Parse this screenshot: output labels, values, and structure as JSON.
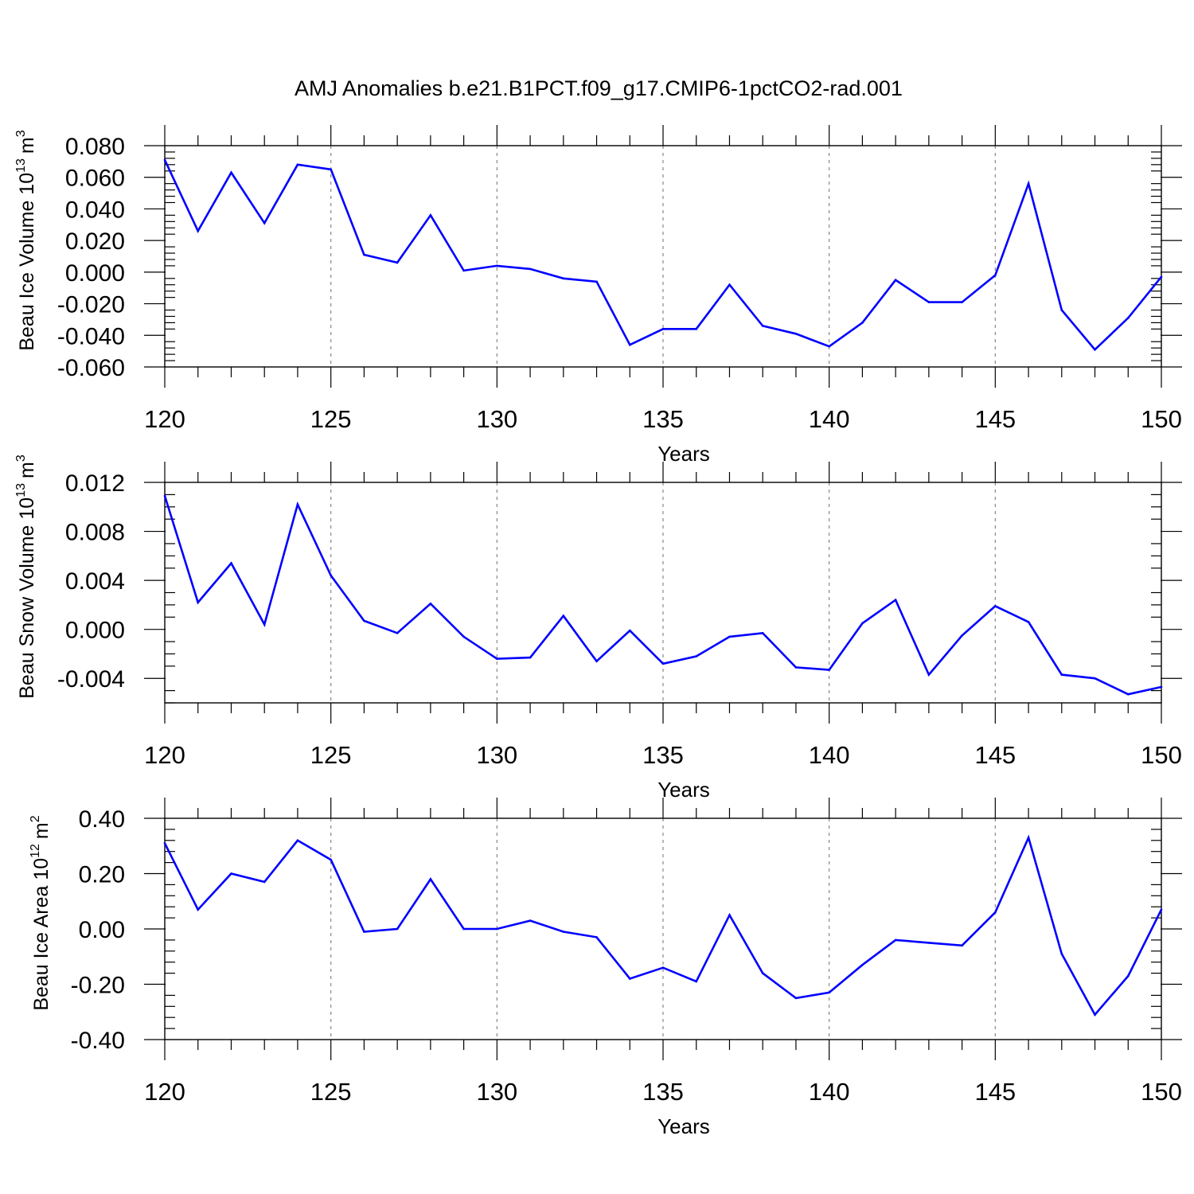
{
  "title": "AMJ Anomalies b.e21.B1PCT.f09_g17.CMIP6-1pctCO2-rad.001",
  "colors": {
    "line": "#0000ff",
    "axis": "#000000",
    "grid": "#888888"
  },
  "chart_data": [
    {
      "type": "line",
      "ylabel": "Beau Ice Volume 10",
      "ylabel_exp": "13",
      "ylabel_unit": "m",
      "ylabel_unit_exp": "3",
      "xlabel": "Years",
      "xlim": [
        120,
        150
      ],
      "ylim": [
        -0.06,
        0.08
      ],
      "xticks": [
        120,
        125,
        130,
        135,
        140,
        145,
        150
      ],
      "xtick_labels": [
        "120",
        "125",
        "130",
        "135",
        "140",
        "145",
        "150"
      ],
      "yticks": [
        -0.06,
        -0.04,
        -0.02,
        0.0,
        0.02,
        0.04,
        0.06,
        0.08
      ],
      "ytick_labels": [
        "-0.060",
        "-0.040",
        "-0.020",
        "0.000",
        "0.020",
        "0.040",
        "0.060",
        "0.080"
      ],
      "grid": "vertical dashed at major x ticks",
      "x": [
        120,
        121,
        122,
        123,
        124,
        125,
        126,
        127,
        128,
        129,
        130,
        131,
        132,
        133,
        134,
        135,
        136,
        137,
        138,
        139,
        140,
        141,
        142,
        143,
        144,
        145,
        146,
        147,
        148,
        149,
        150
      ],
      "series": [
        {
          "values": [
            0.071,
            0.026,
            0.063,
            0.031,
            0.068,
            0.065,
            0.011,
            0.006,
            0.036,
            0.001,
            0.004,
            0.002,
            -0.004,
            -0.006,
            -0.046,
            -0.036,
            -0.036,
            -0.008,
            -0.034,
            -0.039,
            -0.047,
            -0.032,
            -0.005,
            -0.019,
            -0.019,
            -0.002,
            0.056,
            -0.024,
            -0.049,
            -0.029,
            -0.003
          ]
        }
      ]
    },
    {
      "type": "line",
      "ylabel": "Beau Snow Volume 10",
      "ylabel_exp": "13",
      "ylabel_unit": "m",
      "ylabel_unit_exp": "3",
      "xlabel": "Years",
      "xlim": [
        120,
        150
      ],
      "ylim": [
        -0.006,
        0.012
      ],
      "xticks": [
        120,
        125,
        130,
        135,
        140,
        145,
        150
      ],
      "xtick_labels": [
        "120",
        "125",
        "130",
        "135",
        "140",
        "145",
        "150"
      ],
      "yticks": [
        -0.004,
        0.0,
        0.004,
        0.008,
        0.012
      ],
      "ytick_labels": [
        "-0.004",
        "0.000",
        "0.004",
        "0.008",
        "0.012"
      ],
      "grid": "vertical dashed at major x ticks",
      "x": [
        120,
        121,
        122,
        123,
        124,
        125,
        126,
        127,
        128,
        129,
        130,
        131,
        132,
        133,
        134,
        135,
        136,
        137,
        138,
        139,
        140,
        141,
        142,
        143,
        144,
        145,
        146,
        147,
        148,
        149,
        150
      ],
      "series": [
        {
          "values": [
            0.0109,
            0.0022,
            0.0054,
            0.0004,
            0.0102,
            0.0044,
            0.0007,
            -0.0003,
            0.0021,
            -0.0006,
            -0.0024,
            -0.0023,
            0.0011,
            -0.0026,
            -0.0001,
            -0.0028,
            -0.0022,
            -0.0006,
            -0.0003,
            -0.0031,
            -0.0033,
            0.0005,
            0.0024,
            -0.0037,
            -0.0005,
            0.0019,
            0.0006,
            -0.0037,
            -0.004,
            -0.0053,
            -0.0047
          ]
        }
      ]
    },
    {
      "type": "line",
      "ylabel": "Beau Ice Area 10",
      "ylabel_exp": "12",
      "ylabel_unit": "m",
      "ylabel_unit_exp": "2",
      "xlabel": "Years",
      "xlim": [
        120,
        150
      ],
      "ylim": [
        -0.4,
        0.4
      ],
      "xticks": [
        120,
        125,
        130,
        135,
        140,
        145,
        150
      ],
      "xtick_labels": [
        "120",
        "125",
        "130",
        "135",
        "140",
        "145",
        "150"
      ],
      "yticks": [
        -0.4,
        -0.2,
        0.0,
        0.2,
        0.4
      ],
      "ytick_labels": [
        "-0.40",
        "-0.20",
        "0.00",
        "0.20",
        "0.40"
      ],
      "grid": "vertical dashed at major x ticks",
      "x": [
        120,
        121,
        122,
        123,
        124,
        125,
        126,
        127,
        128,
        129,
        130,
        131,
        132,
        133,
        134,
        135,
        136,
        137,
        138,
        139,
        140,
        141,
        142,
        143,
        144,
        145,
        146,
        147,
        148,
        149,
        150
      ],
      "series": [
        {
          "values": [
            0.31,
            0.07,
            0.2,
            0.17,
            0.32,
            0.25,
            -0.01,
            0.0,
            0.18,
            0.0,
            0.0,
            0.03,
            -0.01,
            -0.03,
            -0.18,
            -0.14,
            -0.19,
            0.05,
            -0.16,
            -0.25,
            -0.23,
            -0.13,
            -0.04,
            -0.05,
            -0.06,
            0.06,
            0.33,
            -0.09,
            -0.31,
            -0.17,
            0.07
          ]
        }
      ]
    }
  ]
}
